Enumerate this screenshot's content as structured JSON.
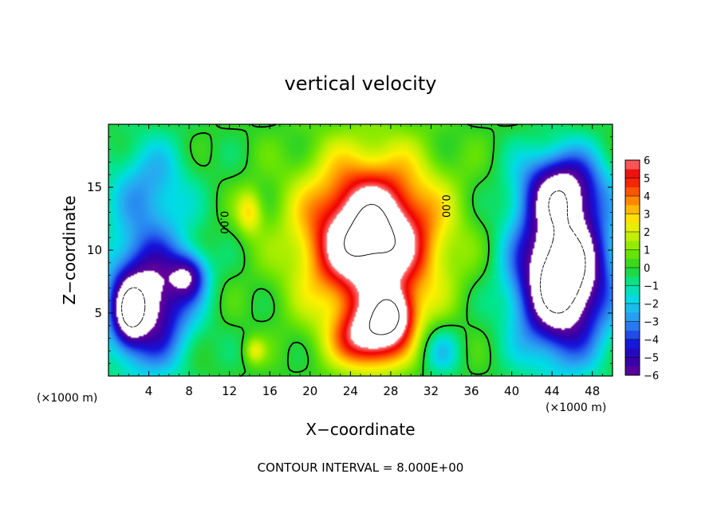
{
  "chart_data": {
    "type": "heatmap",
    "title": "vertical velocity",
    "xlabel": "X−coordinate",
    "ylabel": "Z−coordinate",
    "x_unit": "(×1000 m)",
    "x_unit_right": "(×1000 m)",
    "footer": "CONTOUR INTERVAL = 8.000E+00",
    "xlim": [
      0,
      50
    ],
    "ylim": [
      0,
      20
    ],
    "x_ticks": [
      4,
      8,
      12,
      16,
      20,
      24,
      28,
      32,
      36,
      40,
      44,
      48
    ],
    "x_tick_labels": [
      "4",
      "8",
      "12",
      "16",
      "20",
      "24",
      "28",
      "32",
      "36",
      "40",
      "44",
      "48"
    ],
    "y_ticks": [
      5,
      10,
      15
    ],
    "y_tick_labels": [
      "5",
      "10",
      "15"
    ],
    "colorbar": {
      "min": -6,
      "max": 6,
      "tick_values": [
        6,
        5,
        4,
        3,
        2,
        1,
        0,
        -1,
        -2,
        -3,
        -4,
        -5,
        -6
      ],
      "tick_labels": [
        "6",
        "5",
        "4",
        "3",
        "2",
        "1",
        "0",
        "−1",
        "−2",
        "−3",
        "−4",
        "−5",
        "−6"
      ]
    },
    "contour_labels": [
      {
        "text": "0.00",
        "x": 11.1,
        "y": 12.2
      },
      {
        "text": "0.00",
        "x": 33.1,
        "y": 13.5
      }
    ],
    "field_features": [
      {
        "kind": "updraft",
        "x": 26,
        "z": 11,
        "sx": 6.5,
        "sz": 6,
        "amp": 9
      },
      {
        "kind": "updraft",
        "x": 26,
        "z": 3,
        "sx": 3.5,
        "sz": 2.5,
        "amp": 6
      },
      {
        "kind": "updraft",
        "x": 28.5,
        "z": 5,
        "sx": 2,
        "sz": 2,
        "amp": 4
      },
      {
        "kind": "updraft",
        "x": 14,
        "z": 13,
        "sx": 1.3,
        "sz": 1.8,
        "amp": 2.5
      },
      {
        "kind": "updraft",
        "x": 14.5,
        "z": 2,
        "sx": 1,
        "sz": 1,
        "amp": 2
      },
      {
        "kind": "downdraft",
        "x": 45,
        "z": 8,
        "sx": 4.5,
        "sz": 6,
        "amp": -10
      },
      {
        "kind": "downdraft",
        "x": 45,
        "z": 15,
        "sx": 4,
        "sz": 3,
        "amp": -5
      },
      {
        "kind": "downdraft",
        "x": 4,
        "z": 6,
        "sx": 4,
        "sz": 5,
        "amp": -7
      },
      {
        "kind": "downdraft",
        "x": 8,
        "z": 8,
        "sx": 1.8,
        "sz": 1.8,
        "amp": -4
      },
      {
        "kind": "downdraft",
        "x": 2,
        "z": 5,
        "sx": 1.5,
        "sz": 2.5,
        "amp": -4
      },
      {
        "kind": "downdraft",
        "x": 4,
        "z": 15,
        "sx": 4,
        "sz": 4,
        "amp": -2.5
      },
      {
        "kind": "downdraft",
        "x": 33,
        "z": 2,
        "sx": 2,
        "sz": 2,
        "amp": -2
      }
    ]
  }
}
